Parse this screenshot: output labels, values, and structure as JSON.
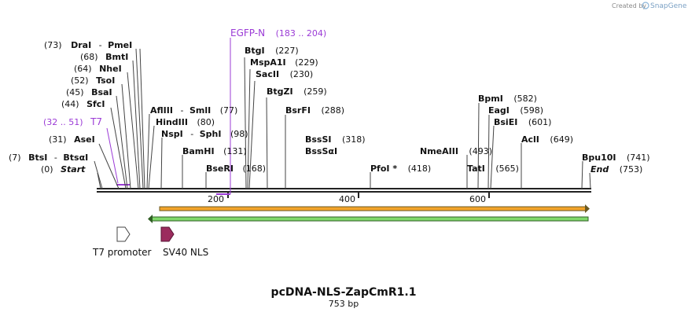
{
  "credit": {
    "created_by": "Created by",
    "brand": "SnapGene"
  },
  "map": {
    "title": "pcDNA-NLS-ZapCmR1.1",
    "length_label": "753 bp",
    "total_bp": 753
  },
  "ticks": [
    "200",
    "400",
    "600"
  ],
  "sites": {
    "start": {
      "pos": "(0)",
      "name": "Start"
    },
    "btsi": {
      "pos": "(7)",
      "name1": "BtsI",
      "name2": "BtsαI"
    },
    "asei": {
      "pos": "(31)",
      "name": "AseI"
    },
    "t7primer": {
      "pos": "(32 .. 51)",
      "name": "T7"
    },
    "sfci": {
      "pos": "(44)",
      "name": "SfcI"
    },
    "bsai": {
      "pos": "(45)",
      "name": "BsaI"
    },
    "tsoi": {
      "pos": "(52)",
      "name": "TsoI"
    },
    "nhei": {
      "pos": "(64)",
      "name": "NheI"
    },
    "bmti": {
      "pos": "(68)",
      "name": "BmtI"
    },
    "drai": {
      "pos": "(73)",
      "name1": "DraI",
      "name2": "PmeI"
    },
    "aflIII": {
      "name1": "AflIII",
      "name2": "SmlI",
      "pos": "(77)"
    },
    "hindIII": {
      "name": "HindIII",
      "pos": "(80)"
    },
    "nspi": {
      "name1": "NspI",
      "name2": "SphI",
      "pos": "(98)"
    },
    "bamhi": {
      "name": "BamHI",
      "pos": "(131)"
    },
    "bseri": {
      "name": "BseRI",
      "pos": "(168)"
    },
    "egfpn": {
      "name": "EGFP-N",
      "pos": "(183 .. 204)"
    },
    "btgi": {
      "name": "BtgI",
      "pos": "(227)"
    },
    "mspa1i": {
      "name": "MspA1I",
      "pos": "(229)"
    },
    "sacii": {
      "name": "SacII",
      "pos": "(230)"
    },
    "btgzi": {
      "name": "BtgZI",
      "pos": "(259)"
    },
    "bsrfi": {
      "name": "BsrFI",
      "pos": "(288)"
    },
    "bsssi": {
      "name": "BssSI",
      "pos": "(318)"
    },
    "bsssai": {
      "name": "BssSαI"
    },
    "pfoi": {
      "name": "PfoI *",
      "pos": "(418)"
    },
    "nmeaiii": {
      "name": "NmeAIII",
      "pos": "(493)"
    },
    "tati": {
      "name": "TatI",
      "pos": "(565)"
    },
    "bpmi": {
      "name": "BpmI",
      "pos": "(582)"
    },
    "eagi": {
      "name": "EagI",
      "pos": "(598)"
    },
    "bsiei": {
      "name": "BsiEI",
      "pos": "(601)"
    },
    "acli": {
      "name": "AclI",
      "pos": "(649)"
    },
    "bpu10i": {
      "name": "Bpu10I",
      "pos": "(741)"
    },
    "end": {
      "name": "End",
      "pos": "(753)"
    }
  },
  "features": {
    "t7_promoter": {
      "label": "T7 promoter",
      "color": "#ffffff"
    },
    "sv40_nls": {
      "label": "SV40 NLS",
      "color": "#9b2c5e"
    },
    "orange_feature": {
      "color": "#f2a32a"
    },
    "green_feature": {
      "color": "#7fd86a"
    }
  },
  "colors": {
    "primer": "#9b3bd6",
    "backbone": "#222222"
  }
}
